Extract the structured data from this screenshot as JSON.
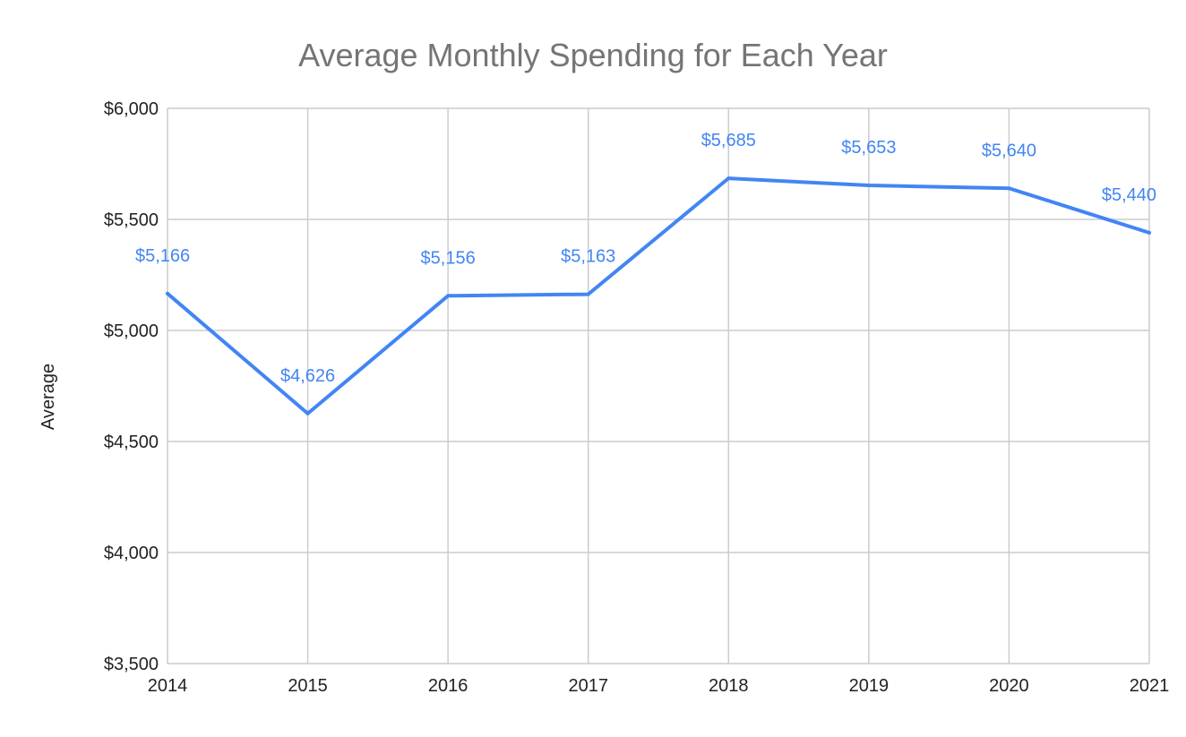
{
  "chart_data": {
    "type": "line",
    "title": "Average Monthly Spending for Each Year",
    "xlabel": "",
    "ylabel": "Average",
    "categories": [
      "2014",
      "2015",
      "2016",
      "2017",
      "2018",
      "2019",
      "2020",
      "2021"
    ],
    "series": [
      {
        "values": [
          5166,
          4626,
          5156,
          5163,
          5685,
          5653,
          5640,
          5440
        ],
        "labels": [
          "$5,166",
          "$4,626",
          "$5,156",
          "$5,163",
          "$5,685",
          "$5,653",
          "$5,640",
          "$5,440"
        ],
        "color": "#4285f4"
      }
    ],
    "ylim": [
      3500,
      6000
    ],
    "yticks": [
      3500,
      4000,
      4500,
      5000,
      5500,
      6000
    ],
    "ytick_labels": [
      "$3,500",
      "$4,000",
      "$4,500",
      "$5,000",
      "$5,500",
      "$6,000"
    ],
    "grid": true,
    "legend": "none",
    "colors": {
      "line": "#4285f4",
      "title": "#757575",
      "grid": "#cccccc",
      "text": "#222222"
    }
  }
}
